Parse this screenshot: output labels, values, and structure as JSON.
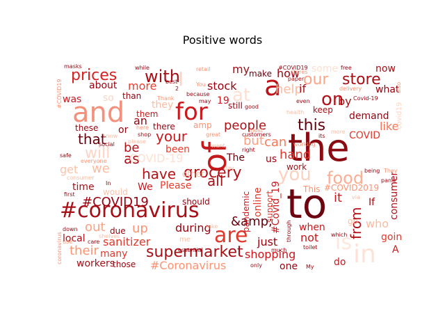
{
  "title": "Positive words",
  "words": [
    {
      "text": "the",
      "color": "#8b0a12"
    },
    {
      "text": "to",
      "color": "#6d0510"
    },
    {
      "text": "and",
      "color": "#f3917c"
    },
    {
      "text": "#coronavirus",
      "color": "#a50f15"
    },
    {
      "text": "of",
      "color": "#c41a1c"
    },
    {
      "text": "for",
      "color": "#cb181d"
    },
    {
      "text": "a",
      "color": "#bd1217"
    },
    {
      "text": "in",
      "color": "#fde3d7"
    },
    {
      "text": "is",
      "color": "#fee7dc"
    },
    {
      "text": "are",
      "color": "#e0382b"
    },
    {
      "text": "you",
      "color": "#fcd1bf"
    },
    {
      "text": "food",
      "color": "#fcae92"
    },
    {
      "text": "with",
      "color": "#a30f15"
    },
    {
      "text": "on",
      "color": "#b11218"
    },
    {
      "text": "prices",
      "color": "#d52221"
    },
    {
      "text": "store",
      "color": "#a50f15"
    },
    {
      "text": "grocery",
      "color": "#b11218"
    },
    {
      "text": "supermarket",
      "color": "#a50f15"
    },
    {
      "text": "this",
      "color": "#67000d"
    },
    {
      "text": "our",
      "color": "#fca486"
    },
    {
      "text": "have",
      "color": "#b61319"
    },
    {
      "text": "your",
      "color": "#cb181d"
    },
    {
      "text": "that",
      "color": "#67000d"
    },
    {
      "text": "people",
      "color": "#ad1117"
    },
    {
      "text": "#COVID19",
      "color": "#99000d"
    },
    {
      "text": "all",
      "color": "#a50f15"
    },
    {
      "text": "at",
      "color": "#fde0d2"
    },
    {
      "text": "I",
      "color": "#fdd4c2"
    },
    {
      "text": "it",
      "color": "#c9181d"
    },
    {
      "text": "be",
      "color": "#b11218"
    },
    {
      "text": "we",
      "color": "#fcbba1"
    },
    {
      "text": "from",
      "color": "#b11218"
    },
    {
      "text": "as",
      "color": "#a50f15"
    },
    {
      "text": "stock",
      "color": "#99000d"
    },
    {
      "text": "my",
      "color": "#a50f15"
    },
    {
      "text": "sanitizer",
      "color": "#e0382b"
    },
    {
      "text": "shopping",
      "color": "#c9181d"
    },
    {
      "text": "The",
      "color": "#67000d"
    },
    {
      "text": "can",
      "color": "#fb7858"
    },
    {
      "text": "hand",
      "color": "#e0382b"
    },
    {
      "text": "just",
      "color": "#99000d"
    },
    {
      "text": "their",
      "color": "#fc9474"
    },
    {
      "text": "during",
      "color": "#99000d"
    },
    {
      "text": "not",
      "color": "#cb181d"
    },
    {
      "text": "up",
      "color": "#fc9272"
    },
    {
      "text": "like",
      "color": "#fb7050"
    },
    {
      "text": "#Coronavirus",
      "color": "#fc9272"
    },
    {
      "text": "will",
      "color": "#fcd5c4"
    },
    {
      "text": "get",
      "color": "#fcc3ab"
    },
    {
      "text": "out",
      "color": "#fca082"
    },
    {
      "text": "but",
      "color": "#fca082"
    },
    {
      "text": "help",
      "color": "#fcbba1"
    },
    {
      "text": "time",
      "color": "#a50f15"
    },
    {
      "text": "about",
      "color": "#99000d"
    },
    {
      "text": "more",
      "color": "#ef3b2c"
    },
    {
      "text": "was",
      "color": "#cb181d"
    },
    {
      "text": "an",
      "color": "#99000d"
    },
    {
      "text": "by",
      "color": "#a50f15"
    },
    {
      "text": "COVID",
      "color": "#e0382b"
    },
    {
      "text": "demand",
      "color": "#99000d"
    },
    {
      "text": "consumer",
      "color": "#b11218"
    },
    {
      "text": "&amp;",
      "color": "#67000d"
    },
    {
      "text": "workers",
      "color": "#a50f15"
    },
    {
      "text": "many",
      "color": "#e0382b"
    },
    {
      "text": "one",
      "color": "#99000d"
    },
    {
      "text": "do",
      "color": "#cb181d"
    },
    {
      "text": "if",
      "color": "#a50f15"
    },
    {
      "text": "how",
      "color": "#99000d"
    },
    {
      "text": "what",
      "color": "#99000d"
    },
    {
      "text": "now",
      "color": "#a50f15"
    },
    {
      "text": "who",
      "color": "#fcbba1"
    },
    {
      "text": "going",
      "color": "#e0382b"
    },
    {
      "text": "local",
      "color": "#a50f15"
    },
    {
      "text": "due",
      "color": "#99000d"
    },
    {
      "text": "those",
      "color": "#99000d"
    },
    {
      "text": "they",
      "color": "#fcbba1"
    },
    {
      "text": "them",
      "color": "#cb181d"
    },
    {
      "text": "these",
      "color": "#99000d"
    },
    {
      "text": "or",
      "color": "#99000d"
    },
    {
      "text": "there",
      "color": "#99000d"
    },
    {
      "text": "amp",
      "color": "#fc9272"
    },
    {
      "text": "been",
      "color": "#ef3b2c"
    },
    {
      "text": "We",
      "color": "#cb181d"
    },
    {
      "text": "Please",
      "color": "#ef3b2c"
    },
    {
      "text": "should",
      "color": "#99000d"
    },
    {
      "text": "work",
      "color": "#a50f15"
    },
    {
      "text": "This",
      "color": "#fc9272"
    },
    {
      "text": "#COVID2019",
      "color": "#fc9272"
    },
    {
      "text": "If",
      "color": "#a50f15"
    },
    {
      "text": "when",
      "color": "#cb181d"
    },
    {
      "text": "online",
      "color": "#e0382b"
    },
    {
      "text": "pandemic",
      "color": "#cb181d"
    },
    {
      "text": "support",
      "color": "#e0382b"
    },
    {
      "text": "#Covid_19",
      "color": "#cb181d"
    },
    {
      "text": "us",
      "color": "#99000d"
    },
    {
      "text": "other",
      "color": "#fcbba1"
    },
    {
      "text": "would",
      "color": "#fcc3ab"
    },
    {
      "text": "some",
      "color": "#fde0d2"
    },
    {
      "text": "still",
      "color": "#99000d"
    },
    {
      "text": "make",
      "color": "#67000d"
    },
    {
      "text": "keep",
      "color": "#a50f15"
    },
    {
      "text": "19",
      "color": "#cb181d"
    },
    {
      "text": "than",
      "color": "#99000d"
    },
    {
      "text": "so",
      "color": "#fcd5c4"
    },
    {
      "text": "covid19",
      "color": "#fcd5c4"
    },
    {
      "text": "A",
      "color": "#cb181d"
    },
    {
      "text": "go",
      "color": "#fcbba1"
    },
    {
      "text": "masks",
      "color": "#99000d"
    },
    {
      "text": "#COVID19",
      "color": "#fc9272"
    },
    {
      "text": "while",
      "color": "#99000d"
    },
    {
      "text": "retail",
      "color": "#fc9272"
    },
    {
      "text": "best",
      "color": "#99000d"
    },
    {
      "text": "2",
      "color": "#99000d"
    },
    {
      "text": "because",
      "color": "#99000d"
    },
    {
      "text": "paper",
      "color": "#a50f15"
    },
    {
      "text": "stores",
      "color": "#fc9272"
    },
    {
      "text": "free",
      "color": "#99000d"
    },
    {
      "text": "delivery",
      "color": "#fc9272"
    },
    {
      "text": "Covid-19",
      "color": "#99000d"
    },
    {
      "text": "also",
      "color": "#fc9272"
    },
    {
      "text": "Thank",
      "color": "#fc9272"
    },
    {
      "text": "good",
      "color": "#99000d"
    },
    {
      "text": "health",
      "color": "#fcbba1"
    },
    {
      "text": "even",
      "color": "#99000d"
    },
    {
      "text": "its",
      "color": "#99000d"
    },
    {
      "text": "customers",
      "color": "#99000d"
    },
    {
      "text": "most",
      "color": "#fc9272"
    },
    {
      "text": "great",
      "color": "#fc9272"
    },
    {
      "text": "right",
      "color": "#99000d"
    },
    {
      "text": "want",
      "color": "#fcbba1"
    },
    {
      "text": "working",
      "color": "#fc9272"
    },
    {
      "text": "social",
      "color": "#99000d"
    },
    {
      "text": "everyone",
      "color": "#fc9272"
    },
    {
      "text": "safe",
      "color": "#99000d"
    },
    {
      "text": "You",
      "color": "#fc9272"
    },
    {
      "text": "know",
      "color": "#fcbba1"
    },
    {
      "text": "here",
      "color": "#fc9272"
    },
    {
      "text": "shop",
      "color": "#99000d"
    },
    {
      "text": "day",
      "color": "#fcbba1"
    },
    {
      "text": "first",
      "color": "#99000d"
    },
    {
      "text": "being",
      "color": "#99000d"
    },
    {
      "text": "They",
      "color": "#fc9272"
    },
    {
      "text": "via",
      "color": "#fcbba1"
    },
    {
      "text": "panic",
      "color": "#99000d"
    },
    {
      "text": "which",
      "color": "#99000d"
    },
    {
      "text": "take",
      "color": "#fcbba1"
    },
    {
      "text": "down",
      "color": "#99000d"
    },
    {
      "text": "use",
      "color": "#fc9272"
    },
    {
      "text": "care",
      "color": "#99000d"
    },
    {
      "text": "essential",
      "color": "#99000d"
    },
    {
      "text": "much",
      "color": "#99000d"
    },
    {
      "text": "toilet",
      "color": "#99000d"
    },
    {
      "text": "only",
      "color": "#99000d"
    },
    {
      "text": "My",
      "color": "#99000d"
    },
    {
      "text": "coronavirus",
      "color": "#fc9272"
    },
    {
      "text": "In",
      "color": "#99000d"
    },
    {
      "text": "me",
      "color": "#fcbba1"
    },
    {
      "text": "through",
      "color": "#99000d"
    },
    {
      "text": "shelves",
      "color": "#fcbba1"
    },
    {
      "text": "more",
      "color": "#fcbba1"
    },
    {
      "text": "may",
      "color": "#99000d"
    },
    {
      "text": "please",
      "color": "#fcbba1"
    },
    {
      "text": "COVID-19",
      "color": "#fde0d2"
    },
    {
      "text": "consumer",
      "color": "#fcbba1"
    },
    {
      "text": "#COVID19",
      "color": "#99000d"
    }
  ]
}
